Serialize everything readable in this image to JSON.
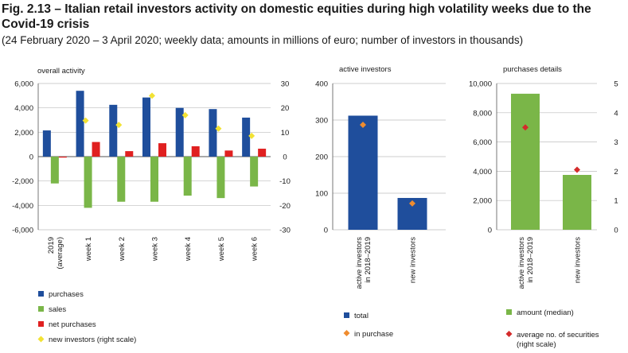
{
  "figure": {
    "title": "Fig. 2.13 – Italian retail investors activity on domestic equities during high volatility weeks due to the Covid-19 crisis",
    "subtitle": "(24 February 2020 – 3 April 2020; weekly data; amounts in millions of euro; number of investors in thousands)"
  },
  "colors": {
    "purchases": "#1f4e9c",
    "sales": "#7ab648",
    "net_purchases": "#e02020",
    "new_investors": "#f2e234",
    "in_purchase": "#ef8c2f",
    "avg_securities": "#d42b2b",
    "grid": "#bdbdbd"
  },
  "chart_data": [
    {
      "type": "bar",
      "title": "overall activity",
      "categories": [
        [
          "2019",
          "(average)"
        ],
        [
          "week 1"
        ],
        [
          "week 2"
        ],
        [
          "week 3"
        ],
        [
          "week 4"
        ],
        [
          "week 5"
        ],
        [
          "week 6"
        ]
      ],
      "ylim": [
        -6000,
        6000
      ],
      "yticks": [
        -6000,
        -4000,
        -2000,
        0,
        2000,
        4000,
        6000
      ],
      "ytick_labels": [
        "-6,000",
        "-4,000",
        "-2,000",
        "0",
        "2,000",
        "4,000",
        "6,000"
      ],
      "y2lim": [
        -30,
        30
      ],
      "y2ticks": [
        -30,
        -20,
        -10,
        0,
        10,
        20,
        30
      ],
      "y2tick_labels": [
        "-30",
        "-20",
        "-10",
        "0",
        "10",
        "20",
        "30"
      ],
      "series": [
        {
          "name": "purchases",
          "kind": "bar",
          "values": [
            2150,
            5400,
            4250,
            4850,
            4000,
            3900,
            3200
          ]
        },
        {
          "name": "sales",
          "kind": "bar",
          "values": [
            -2200,
            -4200,
            -3700,
            -3700,
            -3200,
            -3400,
            -2450
          ]
        },
        {
          "name": "net purchases",
          "kind": "bar",
          "values": [
            -80,
            1200,
            450,
            1100,
            850,
            500,
            650
          ]
        },
        {
          "name": "new investors (right scale)",
          "kind": "marker",
          "axis": "right",
          "values": [
            null,
            14.8,
            13,
            25,
            17,
            11.5,
            8.5
          ]
        }
      ],
      "grid": true
    },
    {
      "type": "bar",
      "title": "active investors",
      "categories": [
        [
          "active investors",
          "in 2018–2019"
        ],
        [
          "new investors"
        ]
      ],
      "ylim": [
        0,
        400
      ],
      "yticks": [
        0,
        100,
        200,
        300,
        400
      ],
      "ytick_labels": [
        "0",
        "100",
        "200",
        "300",
        "400"
      ],
      "series": [
        {
          "name": "total",
          "kind": "bar",
          "values": [
            312,
            87
          ]
        },
        {
          "name": "in purchase",
          "kind": "marker",
          "values": [
            287,
            72
          ]
        }
      ],
      "grid": true
    },
    {
      "type": "bar",
      "title": "purchases details",
      "categories": [
        [
          "active investors",
          "in 2018–2019"
        ],
        [
          "new investors"
        ]
      ],
      "ylim": [
        0,
        10000
      ],
      "yticks": [
        0,
        2000,
        4000,
        6000,
        8000,
        10000
      ],
      "ytick_labels": [
        "0",
        "2,000",
        "4,000",
        "6,000",
        "8,000",
        "10,000"
      ],
      "y2lim": [
        0,
        5
      ],
      "y2ticks": [
        0,
        1,
        2,
        3,
        4,
        5
      ],
      "y2tick_labels": [
        "0",
        "1",
        "2",
        "3",
        "4",
        "5"
      ],
      "series": [
        {
          "name": "amount (median)",
          "kind": "bar",
          "values": [
            9300,
            3750
          ]
        },
        {
          "name": "average no. of securities (right scale)",
          "legend_lines": [
            "average no. of securities",
            "(right scale)"
          ],
          "kind": "marker",
          "axis": "right",
          "values": [
            3.5,
            2.05
          ]
        }
      ],
      "grid": true
    }
  ]
}
